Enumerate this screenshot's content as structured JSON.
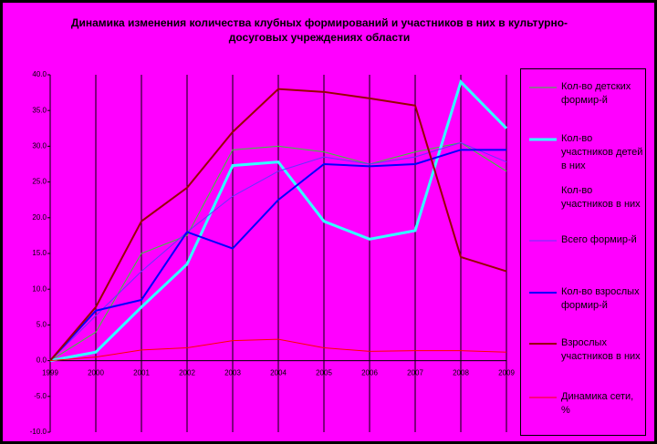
{
  "chart_data": {
    "type": "line",
    "title": "Динамика изменения количества клубных формирований и участников в них в культурно-досуговых учреждениях области",
    "categories": [
      "1999",
      "2000",
      "2001",
      "2002",
      "2003",
      "2004",
      "2005",
      "2006",
      "2007",
      "2008",
      "2009"
    ],
    "ylim": [
      -10,
      40
    ],
    "yticks": [
      {
        "value": -10,
        "label": "-10.0"
      },
      {
        "value": -5,
        "label": "-5.0"
      },
      {
        "value": 0,
        "label": "0.0"
      },
      {
        "value": 5,
        "label": "5.0"
      },
      {
        "value": 10,
        "label": "10.0"
      },
      {
        "value": 15,
        "label": "15.0"
      },
      {
        "value": 20,
        "label": "20.0"
      },
      {
        "value": 25,
        "label": "25.0"
      },
      {
        "value": 30,
        "label": "30.0"
      },
      {
        "value": 35,
        "label": "35.0"
      },
      {
        "value": 40,
        "label": "40.0"
      }
    ],
    "series": [
      {
        "name": "Кол-во детских формир-й",
        "color": "#33cc33",
        "width": 1,
        "values": [
          0,
          4,
          15,
          17.5,
          29.5,
          30,
          29.2,
          27.5,
          29.2,
          30.5,
          26.5
        ]
      },
      {
        "name": "Кол-во участников детей в них",
        "color": "#33ffff",
        "width": 3,
        "values": [
          0,
          1.2,
          7.5,
          13.5,
          27.3,
          27.8,
          19.5,
          17,
          18.2,
          39,
          32.5
        ]
      },
      {
        "name": "Кол-во участников в них",
        "color": "#ff00ff",
        "width": 1,
        "values": [
          null,
          null,
          null,
          null,
          null,
          null,
          null,
          null,
          null,
          null,
          null
        ]
      },
      {
        "name": "Всего формир-й",
        "color": "#6633ff",
        "width": 1,
        "values": [
          0,
          6.3,
          12.5,
          18,
          23,
          26.5,
          28.5,
          27.5,
          28.5,
          30.5,
          27.8
        ]
      },
      {
        "name": "Кол-во взрослых формир-й",
        "color": "#0000ff",
        "width": 2,
        "values": [
          0,
          7,
          8.5,
          18,
          15.7,
          22.5,
          27.5,
          27.2,
          27.5,
          29.5,
          29.5
        ]
      },
      {
        "name": "Взрослых участников в них",
        "color": "#990000",
        "width": 2,
        "values": [
          0,
          7.5,
          19.5,
          24.2,
          32,
          38,
          37.6,
          36.7,
          35.7,
          14.5,
          12.5
        ]
      },
      {
        "name": "Динамика сети, %",
        "color": "#ff0000",
        "width": 1,
        "values": [
          0,
          0.5,
          1.5,
          1.8,
          2.8,
          3,
          1.8,
          1.3,
          1.4,
          1.4,
          1.2
        ]
      }
    ]
  }
}
